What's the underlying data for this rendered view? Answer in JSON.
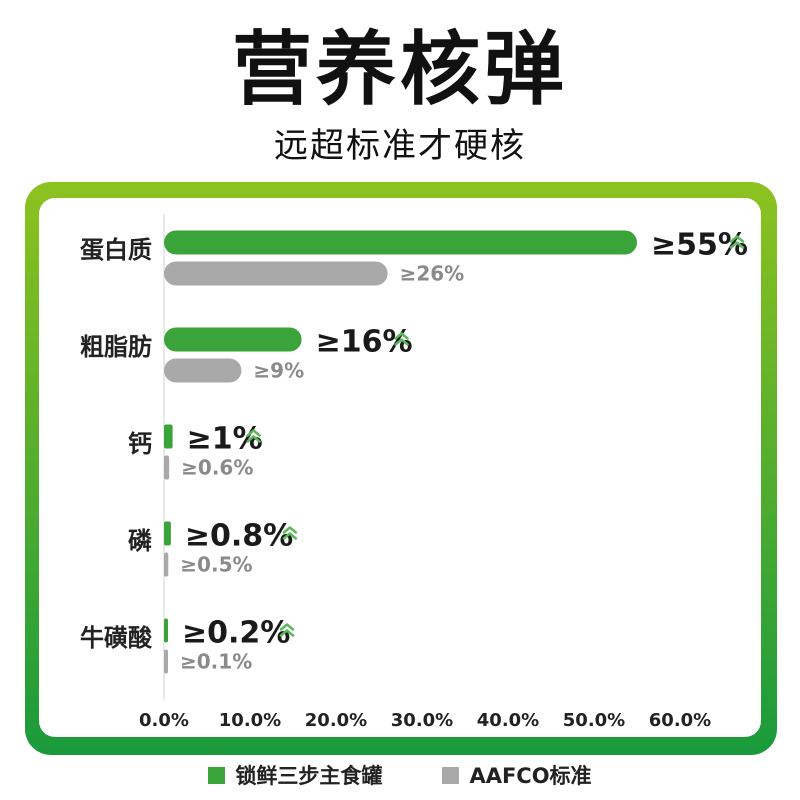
{
  "header": {
    "title": "营养核弹",
    "subtitle": "远超标准才硬核"
  },
  "colors": {
    "frame_top": "#8dc21f",
    "frame_bottom": "#1a9a3c",
    "green_bar": "#3aa33a",
    "gray_bar": "#a9a9a9",
    "green_label": "#1a1a1a",
    "gray_label": "#8a8a8a",
    "chevron": "#5cb85c",
    "axis_text": "#222222"
  },
  "legend": {
    "series1": "锁鲜三步主食罐",
    "series2": "AAFCO标准"
  },
  "chart_data": {
    "type": "bar",
    "orientation": "horizontal",
    "categories": [
      "蛋白质",
      "粗脂肪",
      "钙",
      "磷",
      "牛磺酸"
    ],
    "series": [
      {
        "name": "锁鲜三步主食罐",
        "values": [
          55,
          16,
          1,
          0.8,
          0.2
        ],
        "labels": [
          "≥55%",
          "≥16%",
          "≥1%",
          "≥0.8%",
          "≥0.2%"
        ],
        "icon": "double-chevron-up-icon"
      },
      {
        "name": "AAFCO标准",
        "values": [
          26,
          9,
          0.6,
          0.5,
          0.1
        ],
        "labels": [
          "≥26%",
          "≥9%",
          "≥0.6%",
          "≥0.5%",
          "≥0.1%"
        ]
      }
    ],
    "xlim": [
      0,
      60
    ],
    "xticks": [
      "0.0%",
      "10.0%",
      "20.0%",
      "30.0%",
      "40.0%",
      "50.0%",
      "60.0%"
    ],
    "legend_position": "bottom",
    "grid": false
  }
}
